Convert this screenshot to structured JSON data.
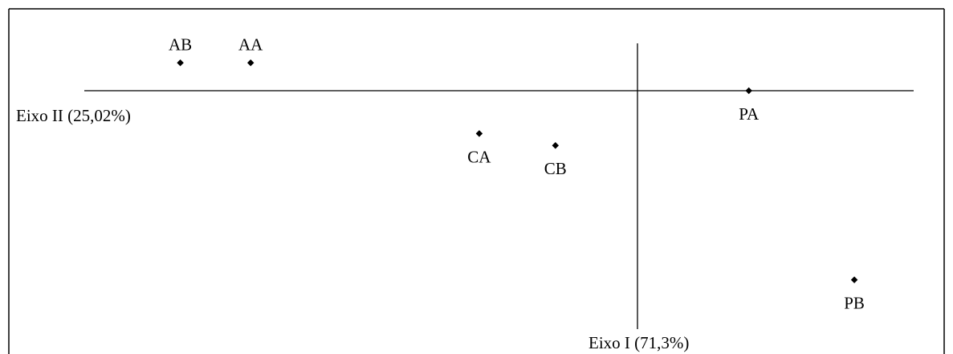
{
  "chart_data": {
    "type": "scatter",
    "title": "",
    "xlabel": "Eixo I (71,3%)",
    "ylabel": "Eixo II (25,02%)",
    "grid": false,
    "legend": "none",
    "points": [
      {
        "label": "AB",
        "x": -0.78,
        "y": 0.28
      },
      {
        "label": "AA",
        "x": -0.66,
        "y": 0.28
      },
      {
        "label": "CA",
        "x": -0.27,
        "y": -0.43
      },
      {
        "label": "CB",
        "x": -0.14,
        "y": -0.55
      },
      {
        "label": "PA",
        "x": 0.19,
        "y": 0.0
      },
      {
        "label": "PB",
        "x": 0.37,
        "y": -1.9
      }
    ],
    "xlim": [
      -0.95,
      0.47
    ],
    "ylim": [
      -2.3,
      0.45
    ],
    "colors": {
      "axis": "#000000",
      "marker": "#000000",
      "frame": "#000000"
    }
  }
}
